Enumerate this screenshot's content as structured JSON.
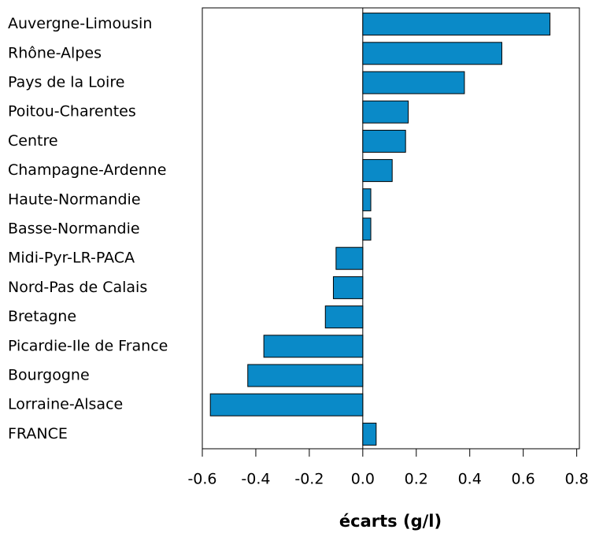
{
  "chart_data": {
    "type": "bar",
    "orientation": "horizontal",
    "x_label": "écarts (g/l)",
    "categories": [
      "Auvergne-Limousin",
      "Rhône-Alpes",
      "Pays de la Loire",
      "Poitou-Charentes",
      "Centre",
      "Champagne-Ardenne",
      "Haute-Normandie",
      "Basse-Normandie",
      "Midi-Pyr-LR-PACA",
      "Nord-Pas de Calais",
      "Bretagne",
      "Picardie-Ile de France",
      "Bourgogne",
      "Lorraine-Alsace",
      "FRANCE"
    ],
    "values": [
      0.7,
      0.52,
      0.38,
      0.17,
      0.16,
      0.11,
      0.03,
      0.03,
      -0.1,
      -0.11,
      -0.14,
      -0.37,
      -0.43,
      -0.57,
      0.05
    ],
    "color": "#0a8ac8",
    "xlim": [
      -0.6,
      0.81
    ],
    "xticks": [
      -0.6,
      -0.4,
      -0.2,
      {
        "value": 0,
        "label": "0.0"
      },
      0.2,
      0.4,
      0.6,
      0.8
    ]
  }
}
